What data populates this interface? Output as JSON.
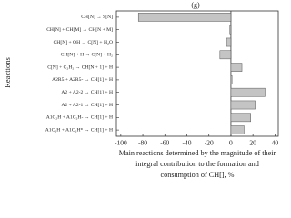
{
  "chart_data": {
    "type": "barh",
    "title": "(g)",
    "ylabel": "Reactions",
    "xlabel": "Main reactions determined by the magnitude of their integral contribution to the formation and consumption of CH[], %",
    "categories": [
      "CH[N] → S[N]",
      "CH[N] + CH[M] → CH[N + M]",
      "CH[N] + OH → C[N] + H₂O",
      "CH[N] + H → C[N] + H₂",
      "C[N] + C₂H₂ → CH[N + 1] + H",
      "A2R5 + A2R5- → CH[1] + H",
      "A2 + A2-2 → CH[1] + H",
      "A2 + A2-1 → CH[1] + H",
      "A1C₂H + A1C₂H- → CH[1] + H",
      "A1C₂H + A1C₂H* → CH[1] + H"
    ],
    "values": [
      -84,
      -1,
      -4,
      -10,
      10,
      1,
      31,
      22,
      18,
      12
    ],
    "color": "#c4c4c4",
    "xlim": [
      -104,
      43
    ],
    "xticks": [
      -100,
      -80,
      -60,
      -40,
      -20,
      0,
      20,
      40
    ]
  }
}
